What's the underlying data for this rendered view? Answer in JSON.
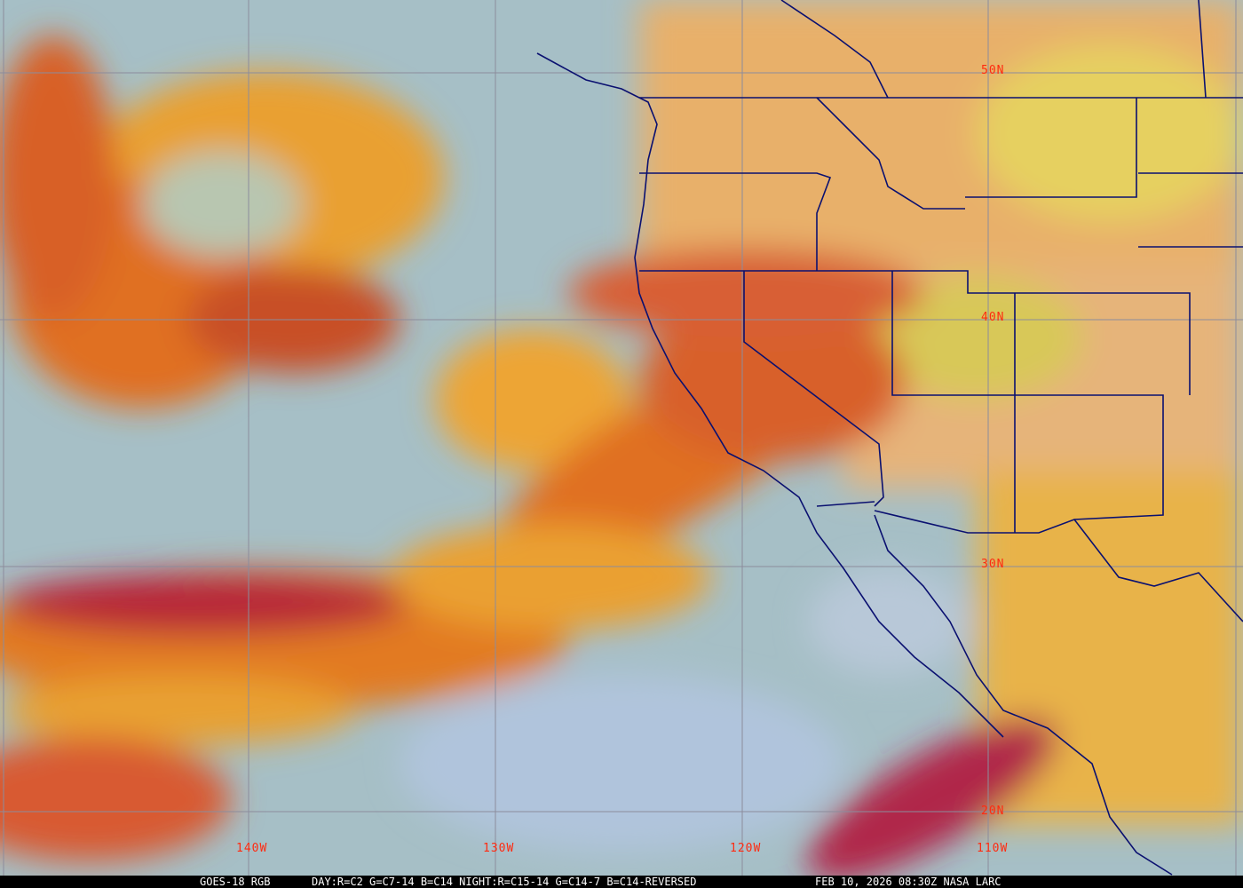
{
  "grid": {
    "lat_labels": [
      "50N",
      "40N",
      "30N",
      "20N"
    ],
    "lon_labels": [
      "140W",
      "130W",
      "120W",
      "110W"
    ],
    "label_color": "#ff2a10",
    "grid_color": "#8c8c9c",
    "border_color": "#0a1070"
  },
  "caption": {
    "satellite": "GOES-18 RGB",
    "recipe": "DAY:R=C2 G=C7-14 B=C14 NIGHT:R=C15-14 G=C14-7 B=C14-REVERSED",
    "timestamp": "FEB 10, 2026 08:30Z NASA LARC"
  }
}
